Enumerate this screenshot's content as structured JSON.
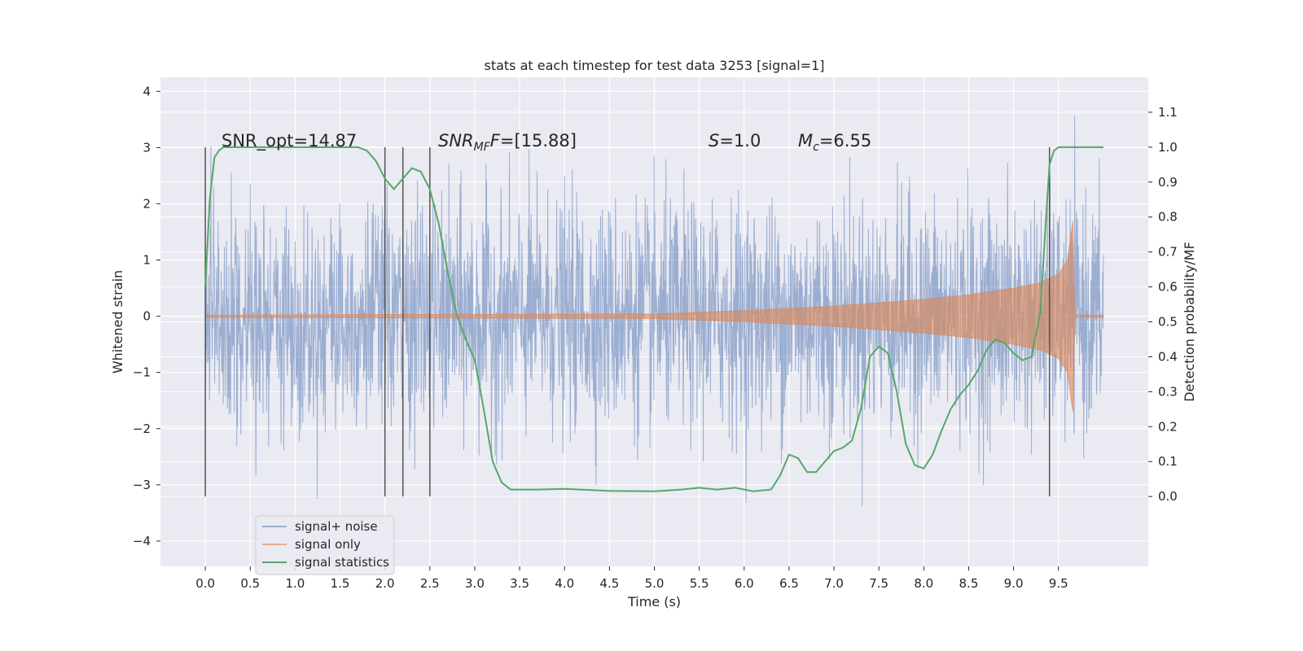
{
  "chart_data": {
    "type": "line",
    "title": "stats at each timestep for test data 3253 [signal=1]",
    "xlabel": "Time (s)",
    "ylabel": "Whitened strain",
    "ylabel_right": "Detection probability/MF",
    "xlim": [
      -0.5,
      10.5
    ],
    "ylim": [
      -4.45,
      4.25
    ],
    "ylim_right": [
      -0.2,
      1.2
    ],
    "grid": true,
    "x_ticks": [
      0.0,
      0.5,
      1.0,
      1.5,
      2.0,
      2.5,
      3.0,
      3.5,
      4.0,
      4.5,
      5.0,
      5.5,
      6.0,
      6.5,
      7.0,
      7.5,
      8.0,
      8.5,
      9.0,
      9.5
    ],
    "x_tick_labels": [
      "0.0",
      "0.5",
      "1.0",
      "1.5",
      "2.0",
      "2.5",
      "3.0",
      "3.5",
      "4.0",
      "4.5",
      "5.0",
      "5.5",
      "6.0",
      "6.5",
      "7.0",
      "7.5",
      "8.0",
      "8.5",
      "9.0",
      "9.5"
    ],
    "y_ticks": [
      -4,
      -3,
      -2,
      -1,
      0,
      1,
      2,
      3,
      4
    ],
    "y_tick_labels": [
      "−4",
      "−3",
      "−2",
      "−1",
      "0",
      "1",
      "2",
      "3",
      "4"
    ],
    "y_right_ticks": [
      0.0,
      0.1,
      0.2,
      0.3,
      0.4,
      0.5,
      0.6,
      0.7,
      0.8,
      0.9,
      1.0,
      1.1
    ],
    "y_right_tick_labels": [
      "0.0",
      "0.1",
      "0.2",
      "0.3",
      "0.4",
      "0.5",
      "0.6",
      "0.7",
      "0.8",
      "0.9",
      "1.0",
      "1.1"
    ],
    "annotations": {
      "snr_opt": "SNR_opt=14.87",
      "snr_mf_prefix": "SNR",
      "snr_mf_sub": "MF",
      "snr_mf_value": "=[15.88]",
      "s_prefix": "S",
      "s_value": "=1.0",
      "mc_prefix": "M",
      "mc_sub": "c",
      "mc_value": "=6.55"
    },
    "legend": {
      "placement": "lower-left",
      "entries": [
        "signal+ noise",
        "signal only",
        "signal statistics"
      ]
    },
    "series": [
      {
        "name": "signal+ noise",
        "color": "#4c72b0",
        "noise_std": 1.0,
        "x_range": [
          0,
          10
        ]
      },
      {
        "name": "signal only",
        "color": "#dd8452",
        "chirp_envelope": {
          "x": [
            0,
            5.0,
            6.0,
            7.0,
            8.0,
            8.5,
            9.0,
            9.3,
            9.5,
            9.6,
            9.66,
            9.68,
            10.0
          ],
          "amp": [
            0.02,
            0.04,
            0.1,
            0.18,
            0.3,
            0.38,
            0.5,
            0.6,
            0.75,
            1.0,
            1.7,
            0.02,
            0.02
          ]
        }
      },
      {
        "name": "signal statistics",
        "color": "#55a868",
        "axis": "right",
        "x": [
          0.0,
          0.05,
          0.1,
          0.15,
          0.2,
          0.3,
          0.4,
          0.6,
          1.0,
          1.5,
          1.7,
          1.8,
          1.9,
          2.0,
          2.1,
          2.2,
          2.3,
          2.4,
          2.5,
          2.6,
          2.7,
          2.8,
          2.9,
          3.0,
          3.1,
          3.2,
          3.3,
          3.4,
          3.5,
          3.7,
          4.0,
          4.5,
          5.0,
          5.3,
          5.5,
          5.7,
          5.9,
          6.1,
          6.3,
          6.4,
          6.5,
          6.6,
          6.7,
          6.8,
          6.9,
          7.0,
          7.1,
          7.2,
          7.3,
          7.4,
          7.5,
          7.6,
          7.7,
          7.8,
          7.9,
          8.0,
          8.1,
          8.2,
          8.3,
          8.4,
          8.5,
          8.6,
          8.7,
          8.8,
          8.9,
          9.0,
          9.1,
          9.2,
          9.3,
          9.35,
          9.4,
          9.45,
          9.5,
          9.6,
          10.0
        ],
        "values": [
          0.6,
          0.85,
          0.97,
          0.99,
          1.0,
          1.0,
          1.0,
          1.0,
          1.0,
          1.0,
          1.0,
          0.99,
          0.96,
          0.91,
          0.88,
          0.91,
          0.94,
          0.93,
          0.88,
          0.78,
          0.64,
          0.52,
          0.45,
          0.39,
          0.25,
          0.1,
          0.04,
          0.02,
          0.02,
          0.02,
          0.022,
          0.016,
          0.015,
          0.02,
          0.025,
          0.02,
          0.025,
          0.015,
          0.02,
          0.06,
          0.12,
          0.11,
          0.07,
          0.07,
          0.1,
          0.13,
          0.14,
          0.16,
          0.25,
          0.4,
          0.43,
          0.41,
          0.3,
          0.15,
          0.09,
          0.08,
          0.12,
          0.19,
          0.25,
          0.29,
          0.32,
          0.36,
          0.42,
          0.45,
          0.44,
          0.41,
          0.39,
          0.4,
          0.53,
          0.75,
          0.95,
          0.99,
          1.0,
          1.0,
          1.0
        ]
      }
    ],
    "vertical_lines": [
      0.0,
      2.0,
      2.2,
      2.5,
      9.4
    ]
  }
}
